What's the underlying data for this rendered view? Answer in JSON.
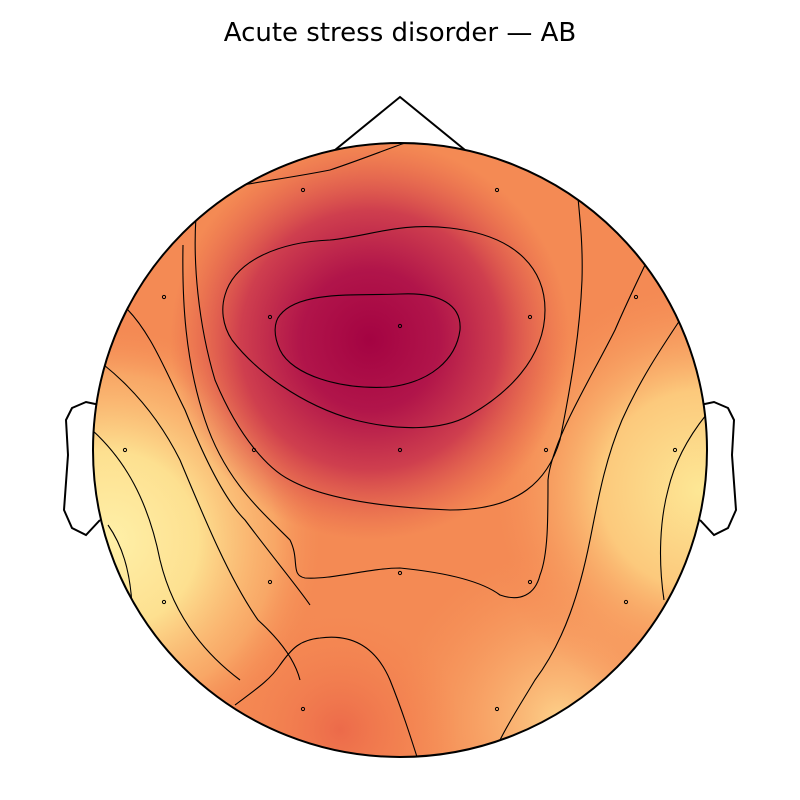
{
  "title": "Acute stress disorder — AB",
  "map": {
    "colormap": [
      "#fff0a8",
      "#fdd98a",
      "#fbb06c",
      "#f5834f",
      "#e35d4a",
      "#c73a4e",
      "#a40342"
    ],
    "contour_color": "#000000",
    "outline_color": "#000000",
    "sensor_count": 19
  }
}
